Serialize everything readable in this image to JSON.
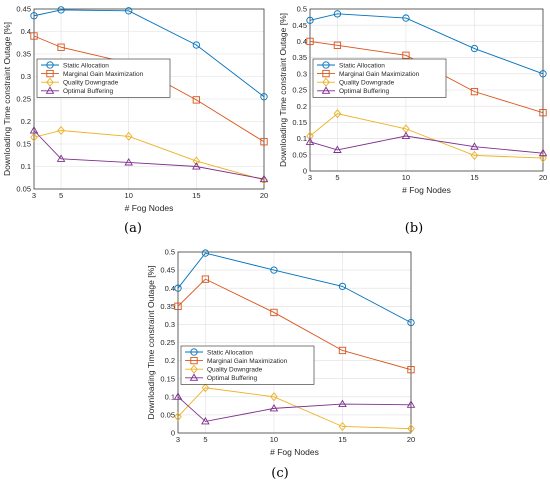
{
  "chart_data": [
    {
      "type": "line",
      "caption": "(a)",
      "xlabel": "# Fog Nodes",
      "ylabel": "Downloading Time constraint Outage [%]",
      "x": [
        3,
        5,
        10,
        15,
        20
      ],
      "x_ticks": [
        "3",
        "5",
        "10",
        "15",
        "20"
      ],
      "ylim": [
        0.05,
        0.45
      ],
      "y_ticks": [
        "0.05",
        "0.1",
        "0.15",
        "0.2",
        "0.25",
        "0.3",
        "0.35",
        "0.4",
        "0.45"
      ],
      "grid": true,
      "legend_position": "upper-left",
      "series": [
        {
          "name": "Static Allocation",
          "color": "#0072BD",
          "marker": "circle",
          "values": [
            0.435,
            0.448,
            0.446,
            0.37,
            0.255
          ]
        },
        {
          "name": "Marginal Gain Maximization",
          "color": "#D95319",
          "marker": "square",
          "values": [
            0.39,
            0.365,
            0.33,
            0.248,
            0.155
          ]
        },
        {
          "name": "Quality Downgrade",
          "color": "#EDB120",
          "marker": "diamond",
          "values": [
            0.165,
            0.18,
            0.167,
            0.112,
            0.07
          ]
        },
        {
          "name": "Optimal Buffering",
          "color": "#7E2F8E",
          "marker": "triangle",
          "values": [
            0.18,
            0.117,
            0.109,
            0.1,
            0.072
          ]
        }
      ]
    },
    {
      "type": "line",
      "caption": "(b)",
      "xlabel": "# Fog Nodes",
      "ylabel": "Downloading Time constraint Outage [%]",
      "x": [
        3,
        5,
        10,
        15,
        20
      ],
      "x_ticks": [
        "3",
        "5",
        "10",
        "15",
        "20"
      ],
      "ylim": [
        0,
        0.5
      ],
      "y_ticks": [
        "0",
        "0.05",
        "0.1",
        "0.15",
        "0.2",
        "0.25",
        "0.3",
        "0.35",
        "0.4",
        "0.45",
        "0.5"
      ],
      "grid": true,
      "legend_position": "upper-left",
      "series": [
        {
          "name": "Static Allocation",
          "color": "#0072BD",
          "marker": "circle",
          "values": [
            0.465,
            0.485,
            0.472,
            0.378,
            0.3
          ]
        },
        {
          "name": "Marginal Gain Maximization",
          "color": "#D95319",
          "marker": "square",
          "values": [
            0.4,
            0.388,
            0.357,
            0.245,
            0.18
          ]
        },
        {
          "name": "Quality Downgrade",
          "color": "#EDB120",
          "marker": "diamond",
          "values": [
            0.108,
            0.177,
            0.13,
            0.048,
            0.04
          ]
        },
        {
          "name": "Optimal Buffering",
          "color": "#7E2F8E",
          "marker": "triangle",
          "values": [
            0.09,
            0.065,
            0.108,
            0.075,
            0.055
          ]
        }
      ]
    },
    {
      "type": "line",
      "caption": "(c)",
      "xlabel": "# Fog Nodes",
      "ylabel": "Downloading Time constraint Outage [%]",
      "x": [
        3,
        5,
        10,
        15,
        20
      ],
      "x_ticks": [
        "3",
        "5",
        "10",
        "15",
        "20"
      ],
      "ylim": [
        0,
        0.5
      ],
      "y_ticks": [
        "0",
        "0.05",
        "0.1",
        "0.15",
        "0.2",
        "0.25",
        "0.3",
        "0.35",
        "0.4",
        "0.45",
        "0.5"
      ],
      "grid": true,
      "legend_position": "center-left",
      "series": [
        {
          "name": "Static Allocation",
          "color": "#0072BD",
          "marker": "circle",
          "values": [
            0.4,
            0.497,
            0.45,
            0.405,
            0.305
          ]
        },
        {
          "name": "Marginal Gain Maximization",
          "color": "#D95319",
          "marker": "square",
          "values": [
            0.35,
            0.425,
            0.333,
            0.228,
            0.175
          ]
        },
        {
          "name": "Quality Downgrade",
          "color": "#EDB120",
          "marker": "diamond",
          "values": [
            0.045,
            0.125,
            0.1,
            0.018,
            0.012
          ]
        },
        {
          "name": "Optimal Buffering",
          "color": "#7E2F8E",
          "marker": "triangle",
          "values": [
            0.1,
            0.032,
            0.068,
            0.08,
            0.078
          ]
        }
      ]
    }
  ]
}
